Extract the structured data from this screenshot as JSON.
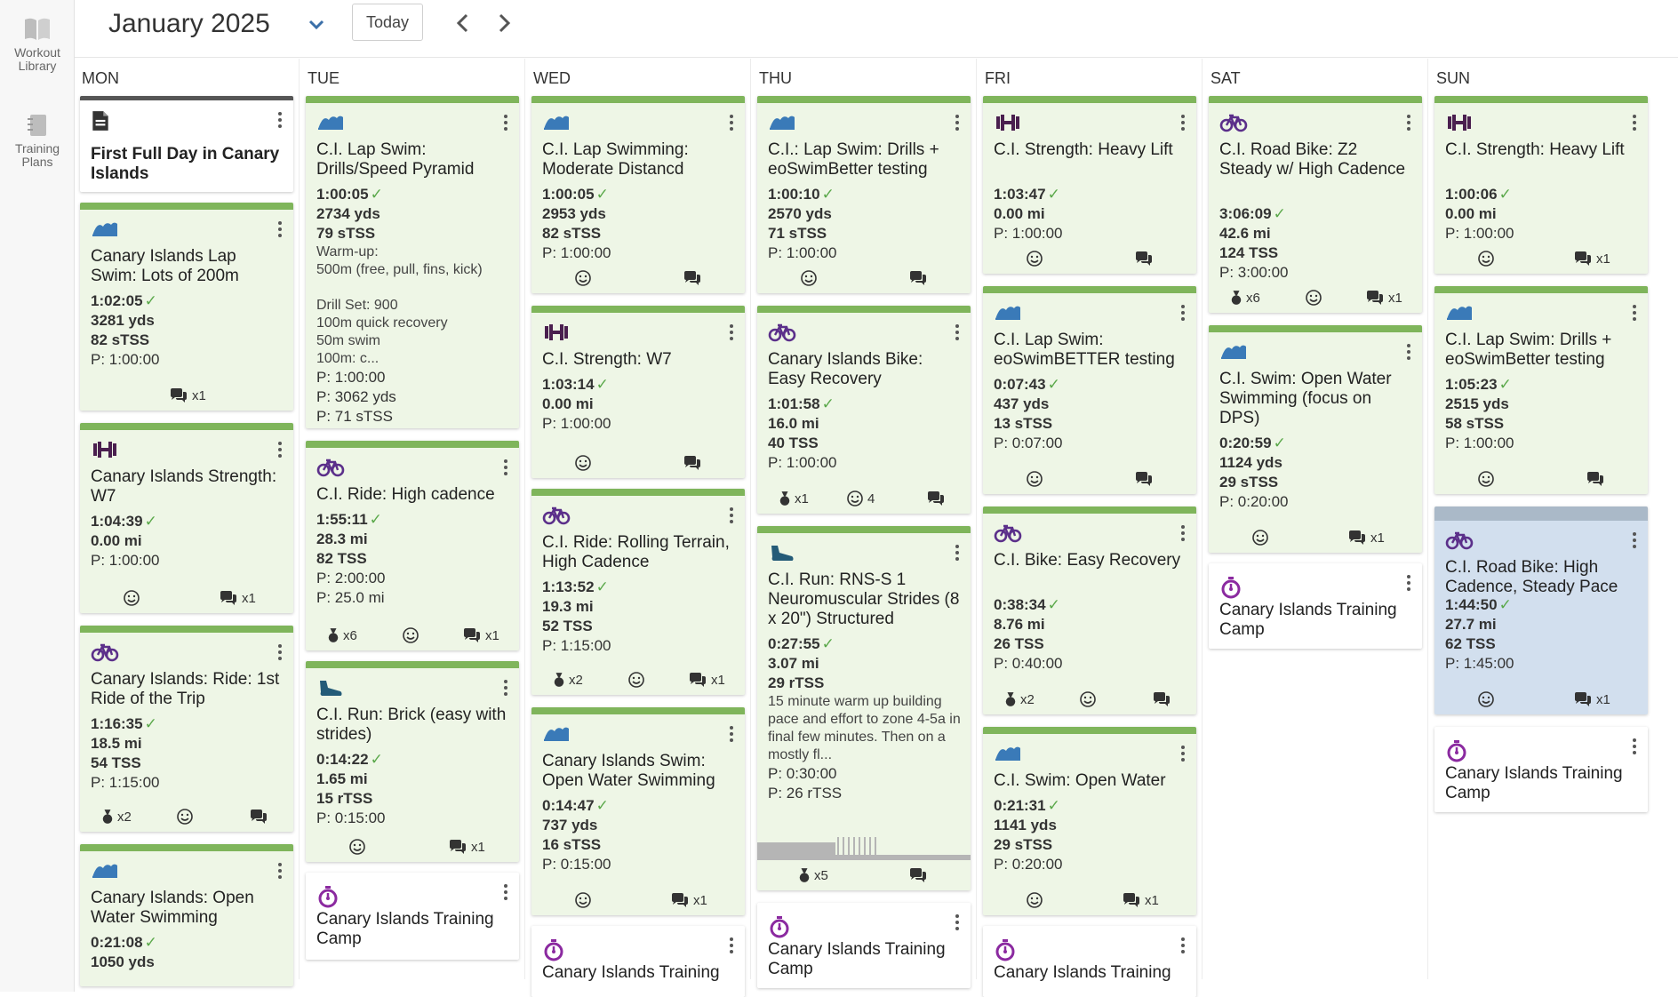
{
  "sidebar": [
    {
      "label": "Workout Library",
      "icon": "book-icon"
    },
    {
      "label": "Training Plans",
      "icon": "notebook-icon"
    }
  ],
  "header": {
    "month": "January 2025",
    "today_label": "Today"
  },
  "colors": {
    "green_bar": "#7fb55b",
    "card_green": "#eef6e6",
    "swim": "#3a7ab8",
    "bike": "#5b2f8a",
    "strength": "#4a1f4f",
    "run": "#245b78",
    "event": "#8b2aa0"
  },
  "days": [
    "MON",
    "TUE",
    "WED",
    "THU",
    "FRI",
    "SAT",
    "SUN"
  ],
  "cards": {
    "mon": [
      {
        "title": "First Full Day in Canary Islands"
      },
      {
        "title": "Canary Islands Lap Swim: Lots of 200m",
        "duration": "1:02:05",
        "distance": "3281 yds",
        "load": "82 sTSS",
        "planned": "P: 1:00:00",
        "comments": "x1"
      },
      {
        "title": "Canary Islands Strength: W7",
        "duration": "1:04:39",
        "distance": "0.00 mi",
        "planned": "P: 1:00:00",
        "comments": "x1"
      },
      {
        "title": "Canary Islands: Ride: 1st Ride of the Trip",
        "duration": "1:16:35",
        "distance": "18.5 mi",
        "load": "54 TSS",
        "planned": "P: 1:15:00",
        "medals": "x2"
      },
      {
        "title": "Canary Islands: Open Water Swimming",
        "duration": "0:21:08",
        "distance": "1050 yds"
      }
    ],
    "tue": [
      {
        "title": "C.I. Lap Swim: Drills/Speed Pyramid",
        "duration": "1:00:05",
        "distance": "2734 yds",
        "load": "79 sTSS",
        "description": "Warm-up:\n500m (free, pull, fins, kick)\n\nDrill Set: 900\n100m quick recovery\n50m swim\n100m: c...",
        "planned": "P: 1:00:00",
        "planned_distance": "P: 3062 yds",
        "planned_load": "P: 71 sTSS"
      },
      {
        "title": "C.I. Ride: High cadence",
        "duration": "1:55:11",
        "distance": "28.3 mi",
        "load": "82 TSS",
        "planned": "P: 2:00:00",
        "planned_distance": "P: 25.0 mi",
        "medals": "x6",
        "comments": "x1"
      },
      {
        "title": "C.I. Run: Brick (easy with strides)",
        "duration": "0:14:22",
        "distance": "1.65 mi",
        "load": "15 rTSS",
        "planned": "P: 0:15:00",
        "comments": "x1"
      },
      {
        "title": "Canary Islands Training Camp"
      }
    ],
    "wed": [
      {
        "title": "C.I. Lap Swimming: Moderate Distancd",
        "duration": "1:00:05",
        "distance": "2953 yds",
        "load": "82 sTSS",
        "planned": "P: 1:00:00"
      },
      {
        "title": "C.I. Strength: W7",
        "duration": "1:03:14",
        "distance": "0.00 mi",
        "planned": "P: 1:00:00"
      },
      {
        "title": "C.I. Ride: Rolling Terrain, High Cadence",
        "duration": "1:13:52",
        "distance": "19.3 mi",
        "load": "52 TSS",
        "planned": "P: 1:15:00",
        "medals": "x2",
        "comments": "x1"
      },
      {
        "title": "Canary Islands Swim: Open Water Swimming",
        "duration": "0:14:47",
        "distance": "737 yds",
        "load": "16 sTSS",
        "planned": "P: 0:15:00",
        "comments": "x1"
      },
      {
        "title": "Canary Islands Training"
      }
    ],
    "thu": [
      {
        "title": "C.I.: Lap Swim: Drills + eoSwimBetter testing",
        "duration": "1:00:10",
        "distance": "2570 yds",
        "load": "71 sTSS",
        "planned": "P: 1:00:00"
      },
      {
        "title": "Canary Islands Bike: Easy Recovery",
        "duration": "1:01:58",
        "distance": "16.0 mi",
        "load": "40 TSS",
        "planned": "P: 1:00:00",
        "medals": "x1",
        "smiles": "4"
      },
      {
        "title": "C.I. Run: RNS-S 1 Neuromuscular Strides (8 x 20\") Structured",
        "duration": "0:27:55",
        "distance": "3.07 mi",
        "load": "29 rTSS",
        "description": "15 minute warm up building pace and effort to zone 4-5a in final few minutes. Then on a mostly fl...",
        "planned": "P: 0:30:00",
        "planned_load": "P: 26 rTSS",
        "medals": "x5"
      },
      {
        "title": "Canary Islands Training Camp"
      }
    ],
    "fri": [
      {
        "title": "C.I. Strength: Heavy Lift",
        "duration": "1:03:47",
        "distance": "0.00 mi",
        "planned": "P: 1:00:00"
      },
      {
        "title": "C.I. Lap Swim: eoSwimBETTER testing",
        "duration": "0:07:43",
        "distance": "437 yds",
        "load": "13 sTSS",
        "planned": "P: 0:07:00"
      },
      {
        "title": "C.I. Bike: Easy Recovery",
        "duration": "0:38:34",
        "distance": "8.76 mi",
        "load": "26 TSS",
        "planned": "P: 0:40:00",
        "medals": "x2"
      },
      {
        "title": "C.I. Swim: Open Water",
        "duration": "0:21:31",
        "distance": "1141 yds",
        "load": "29 sTSS",
        "planned": "P: 0:20:00",
        "comments": "x1"
      },
      {
        "title": "Canary Islands Training"
      }
    ],
    "sat": [
      {
        "title": "C.I. Road Bike: Z2 Steady w/ High Cadence",
        "duration": "3:06:09",
        "distance": "42.6 mi",
        "load": "124 TSS",
        "planned": "P: 3:00:00",
        "medals": "x6",
        "comments": "x1"
      },
      {
        "title": "C.I. Swim: Open Water Swimming (focus on DPS)",
        "duration": "0:20:59",
        "distance": "1124 yds",
        "load": "29 sTSS",
        "planned": "P: 0:20:00",
        "comments": "x1"
      },
      {
        "title": "Canary Islands Training Camp"
      }
    ],
    "sun": [
      {
        "title": "C.I. Strength: Heavy Lift",
        "duration": "1:00:06",
        "distance": "0.00 mi",
        "planned": "P: 1:00:00",
        "comments": "x1"
      },
      {
        "title": "C.I. Lap Swim: Drills + eoSwimBetter testing",
        "duration": "1:05:23",
        "distance": "2515 yds",
        "load": "58 sTSS",
        "planned": "P: 1:00:00"
      },
      {
        "title": "C.I. Road Bike: High Cadence, Steady Pace",
        "duration": "1:44:50",
        "distance": "27.7 mi",
        "load": "62 TSS",
        "planned": "P: 1:45:00",
        "comments": "x1"
      },
      {
        "title": "Canary Islands Training Camp"
      }
    ]
  }
}
